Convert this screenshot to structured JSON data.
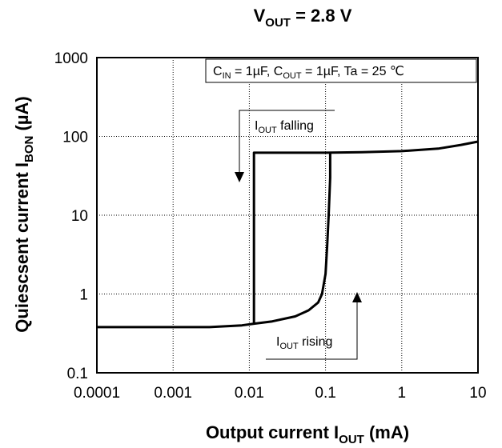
{
  "chart_data": {
    "type": "line",
    "title": "V",
    "title_sub": "OUT",
    "title_rest": " = 2.8 V",
    "xlabel": "Output current  I",
    "xlabel_sub": "OUT",
    "xlabel_rest": " (mA)",
    "ylabel": "Quiescsent current  I",
    "ylabel_sub": "BON",
    "ylabel_rest": " (µA)",
    "x_scale": "log",
    "y_scale": "log",
    "xlim": [
      0.0001,
      10
    ],
    "ylim": [
      0.1,
      1000
    ],
    "x_ticks": [
      "0.0001",
      "0.001",
      "0.01",
      "0.1",
      "1",
      "10"
    ],
    "y_ticks": [
      "0.1",
      "1",
      "10",
      "100",
      "1000"
    ],
    "grid": true,
    "grid_style": "dotted",
    "legend": {
      "placement": "top-right",
      "parts": [
        {
          "text": "C",
          "sub": "IN"
        },
        {
          "text": " = 1µF, C",
          "sub": "OUT"
        },
        {
          "text": " = 1µF, Ta = 25 ℃",
          "sub": ""
        }
      ]
    },
    "annotations": [
      {
        "id": "falling",
        "text": "I",
        "sub": "OUT",
        "rest": " falling",
        "arrow": "down"
      },
      {
        "id": "rising",
        "text": "I",
        "sub": "OUT",
        "rest": " rising",
        "arrow": "up"
      }
    ],
    "series": [
      {
        "id": "falling",
        "x": [
          0.0001,
          0.0003,
          0.001,
          0.003,
          0.008,
          0.0115,
          0.0115,
          0.03,
          0.1,
          0.3,
          1,
          3,
          6,
          10
        ],
        "y": [
          0.38,
          0.38,
          0.38,
          0.38,
          0.4,
          0.42,
          62,
          62,
          62,
          63,
          65,
          70,
          78,
          86
        ]
      },
      {
        "id": "rising",
        "x": [
          0.0115,
          0.02,
          0.04,
          0.06,
          0.08,
          0.09,
          0.1,
          0.105,
          0.11,
          0.115,
          0.115
        ],
        "y": [
          0.42,
          0.45,
          0.52,
          0.62,
          0.78,
          1.0,
          1.8,
          4,
          10,
          30,
          62
        ]
      }
    ]
  }
}
